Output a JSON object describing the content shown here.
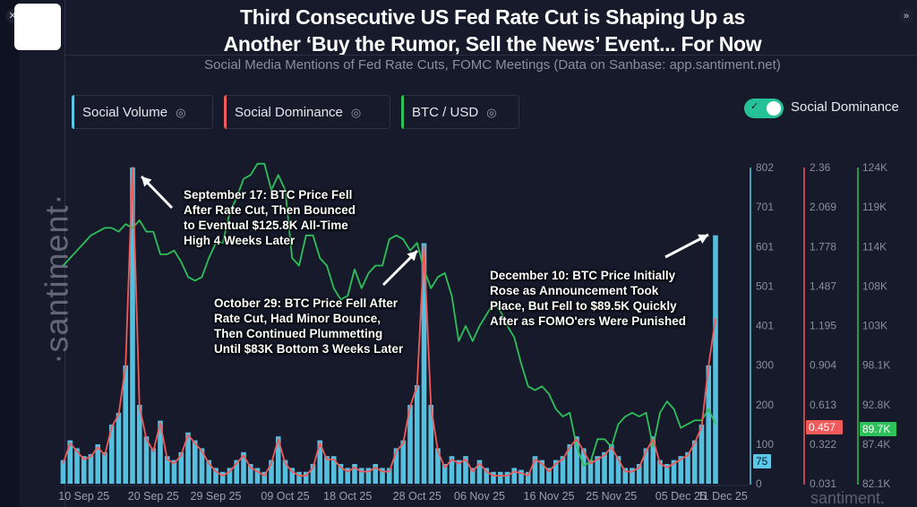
{
  "header": {
    "title_line1": "Third Consecutive US Fed Rate Cut is Shaping Up as",
    "title_line2": "Another ‘Buy the Rumor, Sell the News’ Event... For Now",
    "subtitle": "Social Media Mentions of Fed Rate Cuts, FOMC Meetings (Data on Sanbase: app.santiment.net)"
  },
  "legend": [
    {
      "label": "Social Volume",
      "color": "#5bc8e8",
      "icon": "eye-icon"
    },
    {
      "label": "Social Dominance",
      "color": "#ef5a5a",
      "icon": "eye-icon"
    },
    {
      "label": "BTC / USD",
      "color": "#2ec15a",
      "icon": "eye-icon"
    }
  ],
  "toggle": {
    "label": "Social Dominance",
    "on": true,
    "color": "#26c297"
  },
  "watermark": "·santiment·",
  "annotations": [
    {
      "lines": [
        "September 17: BTC Price Fell",
        "After Rate Cut, Then Bounced",
        "to Eventual $125.8K All-Time",
        "High 4 Weeks Later"
      ]
    },
    {
      "lines": [
        "October 29: BTC Price Fell After",
        "Rate Cut, Had Minor Bounce,",
        "Then Continued Plummetting",
        "Until $83K Bottom 3 Weeks Later"
      ]
    },
    {
      "lines": [
        "December 10: BTC Price Initially",
        "Rose as Announcement Took",
        "Place, But Fell to $89.5K Quickly",
        "After as FOMO'ers Were Punished"
      ]
    }
  ],
  "chart_data": {
    "type": "bar+line",
    "start_date": "2025-09-07",
    "x_ticks": [
      "10 Sep 25",
      "20 Sep 25",
      "29 Sep 25",
      "09 Oct 25",
      "18 Oct 25",
      "28 Oct 25",
      "06 Nov 25",
      "16 Nov 25",
      "25 Nov 25",
      "05 Dec 25",
      "11 Dec 25"
    ],
    "axes": {
      "social_volume": {
        "ticks": [
          "802",
          "701",
          "601",
          "501",
          "401",
          "300",
          "200",
          "100",
          "0"
        ],
        "range": [
          0,
          802
        ],
        "current": "75",
        "color": "#5bc8e8"
      },
      "social_dominance": {
        "ticks": [
          "2.36",
          "2.069",
          "1.778",
          "1.487",
          "1.195",
          "0.904",
          "0.613",
          "0.322",
          "0.031"
        ],
        "range": [
          0.031,
          2.36
        ],
        "current": "0.457",
        "color": "#ef5a5a"
      },
      "btc_usd": {
        "ticks": [
          "124K",
          "119K",
          "114K",
          "108K",
          "103K",
          "98.1K",
          "92.8K",
          "87.4K",
          "82.1K"
        ],
        "range": [
          82.1,
          124
        ],
        "current": "89.7K",
        "color": "#2ec15a"
      }
    },
    "series": [
      {
        "name": "Social Volume",
        "kind": "bar",
        "values": [
          60,
          110,
          90,
          70,
          75,
          100,
          80,
          150,
          180,
          300,
          802,
          200,
          120,
          90,
          160,
          70,
          60,
          80,
          130,
          110,
          90,
          60,
          40,
          30,
          40,
          60,
          80,
          50,
          40,
          30,
          60,
          120,
          60,
          40,
          30,
          30,
          50,
          110,
          70,
          70,
          50,
          40,
          50,
          40,
          40,
          50,
          40,
          40,
          90,
          110,
          200,
          250,
          610,
          200,
          90,
          50,
          70,
          60,
          70,
          40,
          60,
          40,
          30,
          30,
          30,
          40,
          35,
          30,
          70,
          60,
          40,
          60,
          70,
          100,
          120,
          90,
          60,
          70,
          80,
          100,
          70,
          40,
          40,
          50,
          90,
          120,
          60,
          50,
          60,
          70,
          80,
          110,
          150,
          300,
          630
        ]
      },
      {
        "name": "Social Dominance",
        "kind": "line",
        "values": [
          0.18,
          0.33,
          0.27,
          0.21,
          0.23,
          0.3,
          0.24,
          0.45,
          0.54,
          0.9,
          2.36,
          0.6,
          0.36,
          0.27,
          0.48,
          0.21,
          0.18,
          0.24,
          0.39,
          0.33,
          0.27,
          0.18,
          0.12,
          0.09,
          0.12,
          0.18,
          0.24,
          0.15,
          0.12,
          0.09,
          0.18,
          0.36,
          0.18,
          0.12,
          0.09,
          0.09,
          0.15,
          0.33,
          0.21,
          0.21,
          0.15,
          0.12,
          0.15,
          0.12,
          0.12,
          0.15,
          0.12,
          0.12,
          0.27,
          0.33,
          0.6,
          0.75,
          1.78,
          0.6,
          0.27,
          0.15,
          0.21,
          0.18,
          0.21,
          0.12,
          0.18,
          0.12,
          0.09,
          0.09,
          0.09,
          0.12,
          0.11,
          0.09,
          0.21,
          0.18,
          0.12,
          0.18,
          0.21,
          0.3,
          0.36,
          0.27,
          0.18,
          0.21,
          0.24,
          0.3,
          0.21,
          0.12,
          0.12,
          0.15,
          0.27,
          0.36,
          0.18,
          0.15,
          0.18,
          0.21,
          0.24,
          0.33,
          0.45,
          0.9,
          1.25
        ]
      },
      {
        "name": "BTC / USD",
        "kind": "line",
        "unit": "K USD",
        "values": [
          111,
          112,
          113,
          114,
          115,
          115.5,
          116,
          116,
          115.5,
          116.5,
          116,
          117,
          115.5,
          115.5,
          112.5,
          112.5,
          113,
          111.5,
          109.5,
          109,
          109.5,
          112,
          114,
          114,
          118,
          120,
          122.5,
          123,
          124.5,
          124.5,
          121,
          123,
          121,
          112,
          111,
          115,
          115,
          112,
          111,
          108,
          106.5,
          107,
          110.5,
          108,
          110,
          111,
          111,
          114.5,
          115,
          114.5,
          113,
          114,
          110.5,
          108,
          109.5,
          110,
          107,
          101,
          103,
          101,
          103,
          104.5,
          106,
          105,
          103,
          101.5,
          98,
          95,
          94.5,
          95,
          94,
          92,
          91,
          91.5,
          87,
          84.5,
          85,
          88,
          88,
          87,
          90,
          91,
          91.5,
          91,
          91.5,
          87,
          91.5,
          93,
          92,
          89.5,
          90,
          90.5,
          90.5,
          92,
          90
        ]
      }
    ],
    "grid": false
  }
}
